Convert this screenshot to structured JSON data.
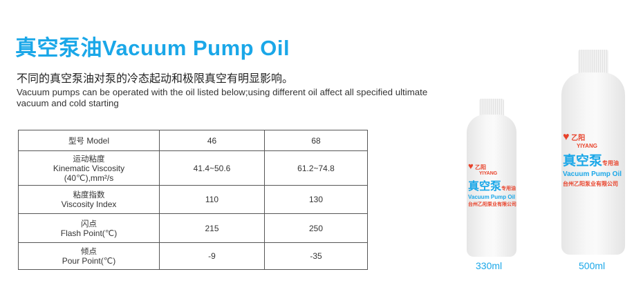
{
  "header": {
    "title": "真空泵油Vacuum Pump Oil",
    "subtitle_cn": "不同的真空泵油对泵的冷态起动和极限真空有明显影响。",
    "subtitle_en": "Vacuum pumps can be operated with the oil listed below;using different oil affect all specified ultimate vacuum and cold starting"
  },
  "table": {
    "rows": [
      {
        "label_cn": "型号",
        "label_en": "Model",
        "v46": "46",
        "v68": "68"
      },
      {
        "label_cn": "运动粘度",
        "label_en": "Kinematic Viscosity",
        "label_unit": "(40℃),mm²/s",
        "v46": "41.4~50.6",
        "v68": "61.2~74.8"
      },
      {
        "label_cn": "粘度指数",
        "label_en": "Viscosity Index",
        "v46": "110",
        "v68": "130"
      },
      {
        "label_cn": "闪点",
        "label_en": "Flash Point(℃)",
        "v46": "215",
        "v68": "250"
      },
      {
        "label_cn": "倾点",
        "label_en": "Pour Point(℃)",
        "v46": "-9",
        "v68": "-35"
      }
    ]
  },
  "products": [
    {
      "capacity": "330ml"
    },
    {
      "capacity": "500ml"
    }
  ],
  "bottle_label": {
    "brand_cn": "乙阳",
    "brand_en": "YIYANG",
    "name_cn": "真空泵",
    "tag_cn": "专用油",
    "name_en": "Vacuum Pump Oil",
    "company": "台州乙阳泵业有限公司"
  },
  "colors": {
    "accent": "#1aa7e8",
    "brand_red": "#e8422a"
  }
}
